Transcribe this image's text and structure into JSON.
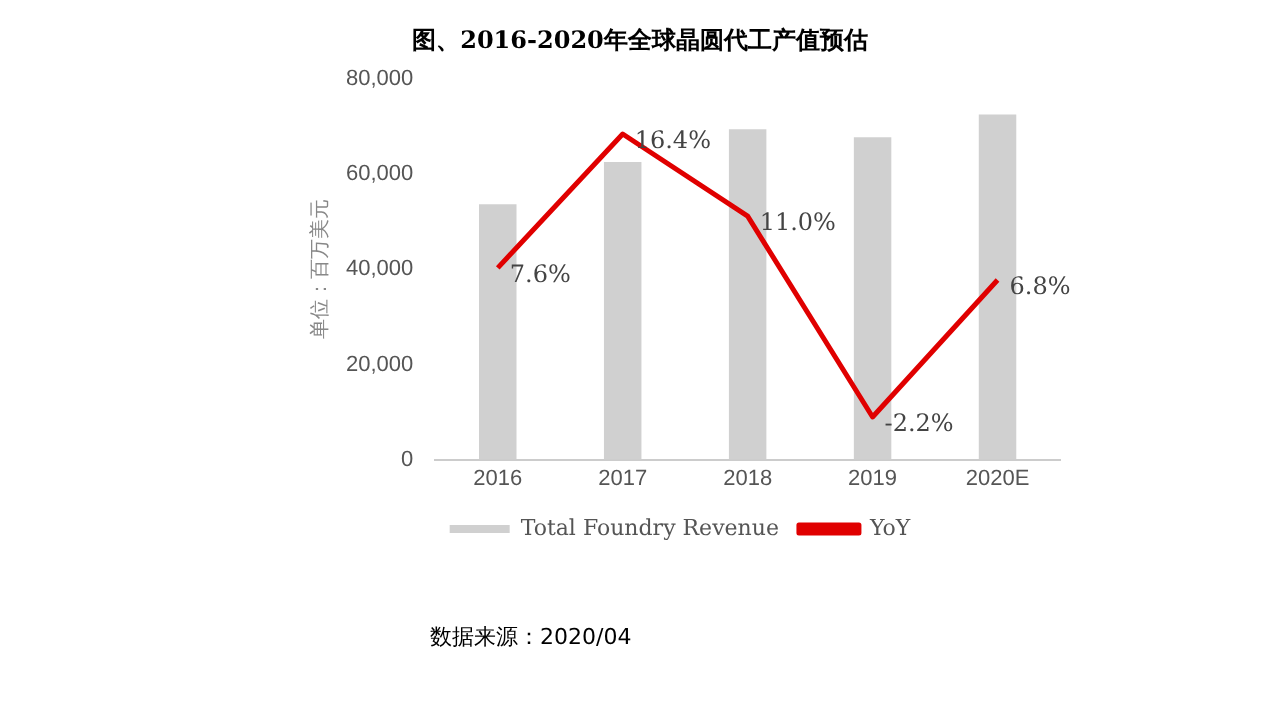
{
  "chart_data": {
    "type": "bar",
    "title": "图、2016-2020年全球晶圆代工产值预估",
    "ylabel": "单位：百万美元",
    "categories": [
      "2016",
      "2017",
      "2018",
      "2019",
      "2020E"
    ],
    "series": [
      {
        "name": "Total Foundry Revenue",
        "color": "#d0d0d0",
        "values": [
          53700,
          62600,
          69500,
          67800,
          72600
        ]
      },
      {
        "name": "YoY",
        "type": "line",
        "axis": "y2",
        "color": "#e00000",
        "values": [
          7.6,
          16.4,
          11.0,
          -2.2,
          6.8
        ],
        "value_labels": [
          "7.6%",
          "16.4%",
          "11.0%",
          "-2.2%",
          "6.8%"
        ]
      }
    ],
    "ylim": [
      0,
      80000
    ],
    "yticks": [
      0,
      {
        "value": 20000,
        "label": "20,000"
      },
      {
        "value": 40000,
        "label": "40,000"
      },
      {
        "value": 60000,
        "label": "60,000"
      },
      {
        "value": 80000,
        "label": "80,000"
      }
    ],
    "grid": false,
    "legend": "bottom",
    "marker": "none",
    "annotations": [
      "数据来源：2020/04"
    ]
  }
}
